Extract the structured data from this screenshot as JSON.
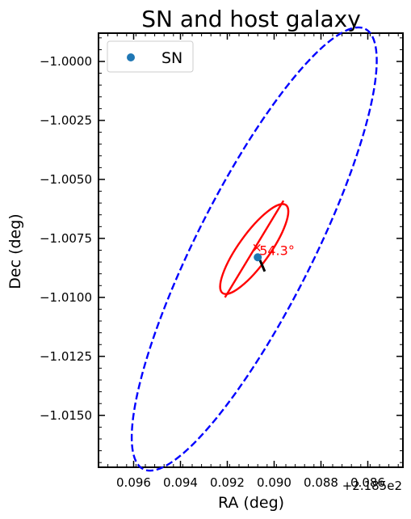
{
  "chart_data": {
    "type": "scatter",
    "title": "SN and host galaxy",
    "xlabel": "RA (deg)",
    "ylabel": "Dec (deg)",
    "x_offset_label": "+2.185e2",
    "xlim": [
      0.0975,
      0.0845
    ],
    "ylim": [
      -1.0172,
      -0.9988
    ],
    "x_ticks": [
      0.096,
      0.094,
      0.092,
      0.09,
      0.088,
      0.086
    ],
    "x_tick_labels": [
      "0.096",
      "0.094",
      "0.092",
      "0.090",
      "0.088",
      "0.086"
    ],
    "y_ticks": [
      -1.0,
      -1.0025,
      -1.005,
      -1.0075,
      -1.01,
      -1.0125,
      -1.015
    ],
    "y_tick_labels": [
      "−1.0000",
      "−1.0025",
      "−1.0050",
      "−1.0075",
      "−1.0100",
      "−1.0125",
      "−1.0150"
    ],
    "grid": false,
    "legend": {
      "placement": "top-left",
      "entries": [
        {
          "label": "SN",
          "color": "#1f77b4"
        }
      ]
    },
    "sn_point": {
      "x": 0.0907,
      "y": -1.0083,
      "color": "#1f77b4"
    },
    "connector": {
      "x1": 0.0907,
      "y1": -1.0082,
      "x2": 0.0904,
      "y2": -1.0089,
      "color": "#000000"
    },
    "outer_ellipse": {
      "center": {
        "x": 0.09085,
        "y": -1.00795
      },
      "a": 0.01045,
      "b": 0.00246,
      "angle_deg": 63.2,
      "color": "#0000ff",
      "style": "dashed"
    },
    "inner_ellipse": {
      "center": {
        "x": 0.09085,
        "y": -1.00795
      },
      "a": 0.0023,
      "b": 0.00066,
      "angle_deg": 54.3,
      "color": "#ff0000",
      "style": "solid"
    },
    "major_axis_line": {
      "x1": 0.0921,
      "y1": -1.01,
      "x2": 0.0896,
      "y2": -1.0059,
      "color": "#ff0000"
    },
    "annotations": [
      {
        "text": "54.3°",
        "x": 0.0907,
        "y": -1.008,
        "color": "#ff0000"
      },
      {
        "text": "×",
        "x": 0.0907,
        "y": -1.0079,
        "color": "#ff0000"
      }
    ]
  }
}
